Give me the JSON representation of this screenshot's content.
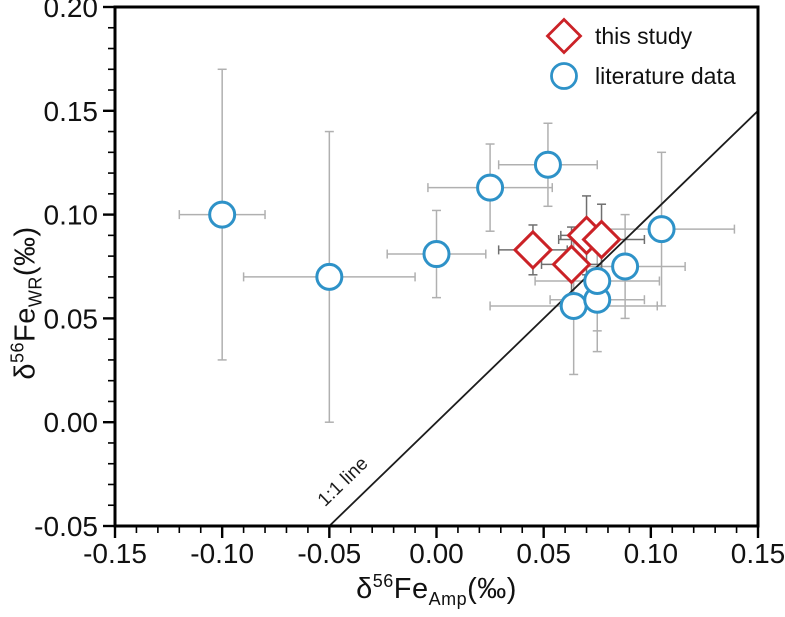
{
  "legend": {
    "items": [
      {
        "label": "this study",
        "marker": "diamond",
        "color": "#cb2227"
      },
      {
        "label": "literature data",
        "marker": "circle",
        "color": "#2e92c8"
      }
    ]
  },
  "axes": {
    "x": {
      "title": {
        "delta": "δ",
        "sup": "56",
        "base": "Fe",
        "sub": "Amp",
        "suffix": "(‰)"
      },
      "min": -0.15,
      "max": 0.15,
      "major_step": 0.05,
      "minor_step": 0.01,
      "ticks": [
        {
          "value": -0.15,
          "label": "-0.15"
        },
        {
          "value": -0.1,
          "label": "-0.10"
        },
        {
          "value": -0.05,
          "label": "-0.05"
        },
        {
          "value": 0.0,
          "label": "0.00"
        },
        {
          "value": 0.05,
          "label": "0.05"
        },
        {
          "value": 0.1,
          "label": "0.10"
        },
        {
          "value": 0.15,
          "label": "0.15"
        }
      ]
    },
    "y": {
      "title": {
        "delta": "δ",
        "sup": "56",
        "base": "Fe",
        "sub": "WR",
        "suffix": "(‰)"
      },
      "min": -0.05,
      "max": 0.2,
      "major_step": 0.05,
      "minor_step": 0.01,
      "ticks": [
        {
          "value": -0.05,
          "label": "-0.05"
        },
        {
          "value": 0.0,
          "label": "0.00"
        },
        {
          "value": 0.05,
          "label": "0.05"
        },
        {
          "value": 0.1,
          "label": "0.10"
        },
        {
          "value": 0.15,
          "label": "0.15"
        },
        {
          "value": 0.2,
          "label": "0.20"
        }
      ]
    }
  },
  "chart_data": {
    "type": "scatter",
    "xlabel": "δ⁵⁶Fe_Amp (‰)",
    "ylabel": "δ⁵⁶Fe_WR (‰)",
    "xlim": [
      -0.15,
      0.15
    ],
    "ylim": [
      -0.05,
      0.2
    ],
    "grid": false,
    "legend_position": "top-right-inside",
    "reference_line": {
      "label": "1:1 line",
      "slope": 1,
      "intercept": 0
    },
    "series": [
      {
        "name": "this study",
        "marker": "diamond",
        "color": "#cb2227",
        "error_color": "#6f6f6f",
        "points": [
          {
            "x": 0.045,
            "y": 0.083,
            "xerr": 0.016,
            "yerr": 0.012
          },
          {
            "x": 0.063,
            "y": 0.076,
            "xerr": 0.014,
            "yerr": 0.018
          },
          {
            "x": 0.07,
            "y": 0.09,
            "xerr": 0.012,
            "yerr": 0.019
          },
          {
            "x": 0.077,
            "y": 0.088,
            "xerr": 0.02,
            "yerr": 0.017
          }
        ]
      },
      {
        "name": "literature data",
        "marker": "circle",
        "color": "#2e92c8",
        "error_color": "#b0b0b0",
        "points": [
          {
            "x": -0.1,
            "y": 0.1,
            "xerr": 0.02,
            "yerr": 0.07
          },
          {
            "x": -0.05,
            "y": 0.07,
            "xerr": 0.04,
            "yerr": 0.07
          },
          {
            "x": 0.0,
            "y": 0.081,
            "xerr": 0.023,
            "yerr": 0.021
          },
          {
            "x": 0.025,
            "y": 0.113,
            "xerr": 0.029,
            "yerr": 0.021
          },
          {
            "x": 0.052,
            "y": 0.124,
            "xerr": 0.023,
            "yerr": 0.02
          },
          {
            "x": 0.064,
            "y": 0.056,
            "xerr": 0.039,
            "yerr": 0.033
          },
          {
            "x": 0.075,
            "y": 0.059,
            "xerr": 0.022,
            "yerr": 0.025
          },
          {
            "x": 0.075,
            "y": 0.068,
            "xerr": 0.029,
            "yerr": 0.024
          },
          {
            "x": 0.088,
            "y": 0.075,
            "xerr": 0.028,
            "yerr": 0.025
          },
          {
            "x": 0.105,
            "y": 0.093,
            "xerr": 0.034,
            "yerr": 0.037
          }
        ]
      }
    ]
  }
}
